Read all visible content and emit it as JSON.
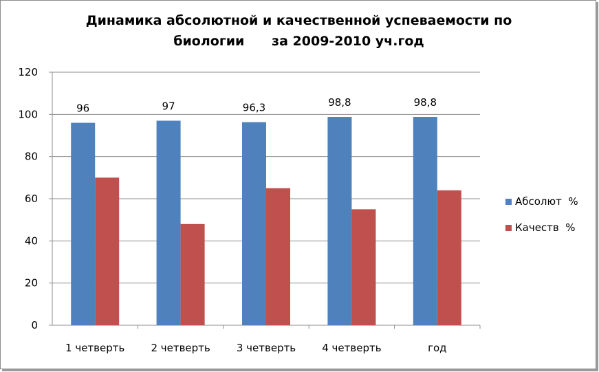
{
  "chart_data": {
    "type": "bar",
    "title_lines": [
      "Динамика абсолютной и качественной успеваемости по",
      "биологии      за 2009-2010 уч.год"
    ],
    "categories": [
      "1 четверть",
      "2 четверть",
      "3 четверть",
      "4 четверть",
      "год"
    ],
    "series": [
      {
        "name": "Абсолют  %",
        "color": "#4f81bd",
        "values": [
          96,
          97,
          96.3,
          98.8,
          98.8
        ],
        "data_labels": [
          "96",
          "97",
          "96,3",
          "98,8",
          "98,8"
        ]
      },
      {
        "name": "Качеств  %",
        "color": "#c0504d",
        "values": [
          70,
          48,
          65,
          55,
          64
        ]
      }
    ],
    "ylim": [
      0,
      120
    ],
    "yticks": [
      0,
      20,
      40,
      60,
      80,
      100,
      120
    ],
    "grid": true,
    "legend": "right"
  }
}
